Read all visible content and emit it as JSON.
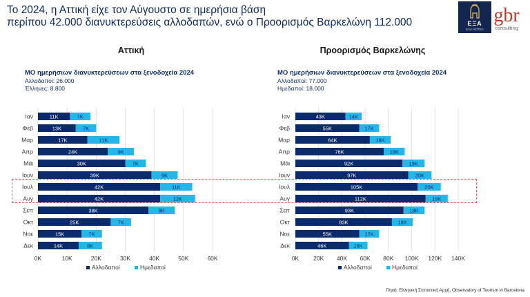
{
  "header": {
    "line1": "Το 2024, η Αττική είχε τον Αύγουστο σε ημερήσια βάση",
    "line2": "περίπου 42.000 διανυκτερεύσεις αλλοδαπών, ενώ ο Προορισμός Βαρκελώνη 112.000"
  },
  "logos": {
    "esa_text": "ΕΞΑ",
    "esa_sub": "ΕΞΑ ΗΟΤΕΛ",
    "gbr_text": "gbr",
    "gbr_sub": "consulting"
  },
  "source": "Πηγή: Ελληνική Στατιστική Αρχή, Observatory of Tourism in Barcelona",
  "colors": {
    "foreign": "#0b2a6b",
    "domestic": "#26b5e8",
    "highlight": "#e05a55"
  },
  "chart_data": [
    {
      "type": "bar",
      "orientation": "horizontal",
      "stacked": true,
      "title": "Αττική",
      "subtitle": "ΜΟ ημερήσιων διανυκτερεύσεων στα ξενοδοχεία 2024",
      "notes": [
        "Αλλοδαποί: 26.000",
        "Έλληνες: 8.800"
      ],
      "categories": [
        "Ιαν",
        "Φεβ",
        "Μαρ",
        "Απρ",
        "Μάι",
        "Ιουν",
        "Ιουλ",
        "Αυγ",
        "Σεπ",
        "Οκτ",
        "Νοε",
        "Δεκ"
      ],
      "series": [
        {
          "name": "Αλλοδαποί",
          "values": [
            11,
            13,
            17,
            24,
            30,
            39,
            42,
            42,
            38,
            25,
            15,
            14
          ]
        },
        {
          "name": "Ημεδαποί",
          "values": [
            7,
            7,
            11,
            9,
            7,
            9,
            11,
            12,
            9,
            7,
            7,
            8
          ]
        }
      ],
      "value_suffix": "K",
      "xlim": [
        0,
        60
      ],
      "xticks": [
        "0K",
        "10K",
        "20K",
        "30K",
        "40K",
        "50K",
        "60K"
      ],
      "grid": true,
      "legend": "bottom",
      "highlighted": [
        "Ιουλ",
        "Αυγ"
      ]
    },
    {
      "type": "bar",
      "orientation": "horizontal",
      "stacked": true,
      "title": "Προορισμός Βαρκελώνης",
      "subtitle": "ΜΟ ημερήσιων διανυκτερεύσεων στα ξενοδοχεία 2024",
      "notes": [
        "Αλλοδαποί: 77.000",
        "Ημεδαποί: 18.000"
      ],
      "categories": [
        "Ιαν",
        "Φεβ",
        "Μαρ",
        "Απρ",
        "Μάι",
        "Ιουν",
        "Ιουλ",
        "Αυγ",
        "Σεπ",
        "Οκτ",
        "Νοε",
        "Δεκ"
      ],
      "series": [
        {
          "name": "Αλλοδαποί",
          "values": [
            43,
            55,
            64,
            76,
            92,
            97,
            105,
            112,
            93,
            83,
            55,
            46
          ]
        },
        {
          "name": "Ημεδαποί",
          "values": [
            14,
            17,
            18,
            18,
            19,
            20,
            20,
            19,
            18,
            18,
            17,
            16
          ]
        }
      ],
      "value_suffix": "K",
      "xlim": [
        0,
        140
      ],
      "xticks": [
        "0K",
        "20K",
        "40K",
        "60K",
        "80K",
        "100K",
        "120K",
        "140K"
      ],
      "grid": true,
      "legend": "bottom",
      "highlighted": [
        "Ιουλ",
        "Αυγ"
      ]
    }
  ]
}
